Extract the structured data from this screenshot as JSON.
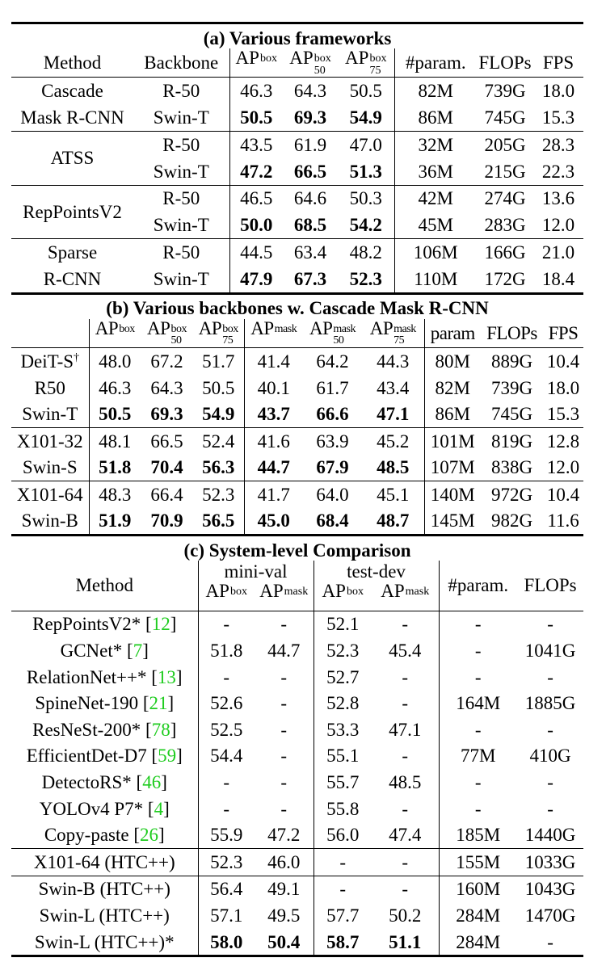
{
  "a": {
    "title": "(a) Various frameworks",
    "headers": [
      "Method",
      "Backbone",
      {
        "base": "AP",
        "sup": "box"
      },
      {
        "base": "AP",
        "sup": "box",
        "sub": "50"
      },
      {
        "base": "AP",
        "sup": "box",
        "sub": "75"
      },
      "#param.",
      "FLOPs",
      "FPS"
    ],
    "groups": [
      {
        "method": [
          "Cascade",
          "Mask R-CNN"
        ],
        "rows": [
          {
            "backbone": "R-50",
            "values": [
              "46.3",
              "64.3",
              "50.5",
              "82M",
              "739G",
              "18.0"
            ],
            "bold": []
          },
          {
            "backbone": "Swin-T",
            "values": [
              "50.5",
              "69.3",
              "54.9",
              "86M",
              "745G",
              "15.3"
            ],
            "bold": [
              0,
              1,
              2
            ]
          }
        ]
      },
      {
        "method": [
          "ATSS"
        ],
        "rows": [
          {
            "backbone": "R-50",
            "values": [
              "43.5",
              "61.9",
              "47.0",
              "32M",
              "205G",
              "28.3"
            ],
            "bold": []
          },
          {
            "backbone": "Swin-T",
            "values": [
              "47.2",
              "66.5",
              "51.3",
              "36M",
              "215G",
              "22.3"
            ],
            "bold": [
              0,
              1,
              2
            ]
          }
        ]
      },
      {
        "method": [
          "RepPointsV2"
        ],
        "rows": [
          {
            "backbone": "R-50",
            "values": [
              "46.5",
              "64.6",
              "50.3",
              "42M",
              "274G",
              "13.6"
            ],
            "bold": []
          },
          {
            "backbone": "Swin-T",
            "values": [
              "50.0",
              "68.5",
              "54.2",
              "45M",
              "283G",
              "12.0"
            ],
            "bold": [
              0,
              1,
              2
            ]
          }
        ]
      },
      {
        "method": [
          "Sparse",
          "R-CNN"
        ],
        "rows": [
          {
            "backbone": "R-50",
            "values": [
              "44.5",
              "63.4",
              "48.2",
              "106M",
              "166G",
              "21.0"
            ],
            "bold": []
          },
          {
            "backbone": "Swin-T",
            "values": [
              "47.9",
              "67.3",
              "52.3",
              "110M",
              "172G",
              "18.4"
            ],
            "bold": [
              0,
              1,
              2
            ]
          }
        ]
      }
    ]
  },
  "b": {
    "title": "(b) Various backbones w. Cascade Mask R-CNN",
    "headers": [
      "",
      {
        "base": "AP",
        "sup": "box"
      },
      {
        "base": "AP",
        "sup": "box",
        "sub": "50"
      },
      {
        "base": "AP",
        "sup": "box",
        "sub": "75"
      },
      {
        "base": "AP",
        "sup": "mask"
      },
      {
        "base": "AP",
        "sup": "mask",
        "sub": "50"
      },
      {
        "base": "AP",
        "sup": "mask",
        "sub": "75"
      },
      "param",
      "FLOPs",
      "FPS"
    ],
    "groups": [
      {
        "rows": [
          {
            "name": "DeiT-S",
            "mark": "†",
            "values": [
              "48.0",
              "67.2",
              "51.7",
              "41.4",
              "64.2",
              "44.3",
              "80M",
              "889G",
              "10.4"
            ],
            "bold": []
          },
          {
            "name": "R50",
            "values": [
              "46.3",
              "64.3",
              "50.5",
              "40.1",
              "61.7",
              "43.4",
              "82M",
              "739G",
              "18.0"
            ],
            "bold": []
          },
          {
            "name": "Swin-T",
            "values": [
              "50.5",
              "69.3",
              "54.9",
              "43.7",
              "66.6",
              "47.1",
              "86M",
              "745G",
              "15.3"
            ],
            "bold": [
              0,
              1,
              2,
              3,
              4,
              5
            ]
          }
        ]
      },
      {
        "rows": [
          {
            "name": "X101-32",
            "values": [
              "48.1",
              "66.5",
              "52.4",
              "41.6",
              "63.9",
              "45.2",
              "101M",
              "819G",
              "12.8"
            ],
            "bold": []
          },
          {
            "name": "Swin-S",
            "values": [
              "51.8",
              "70.4",
              "56.3",
              "44.7",
              "67.9",
              "48.5",
              "107M",
              "838G",
              "12.0"
            ],
            "bold": [
              0,
              1,
              2,
              3,
              4,
              5
            ]
          }
        ]
      },
      {
        "rows": [
          {
            "name": "X101-64",
            "values": [
              "48.3",
              "66.4",
              "52.3",
              "41.7",
              "64.0",
              "45.1",
              "140M",
              "972G",
              "10.4"
            ],
            "bold": []
          },
          {
            "name": "Swin-B",
            "values": [
              "51.9",
              "70.9",
              "56.5",
              "45.0",
              "68.4",
              "48.7",
              "145M",
              "982G",
              "11.6"
            ],
            "bold": [
              0,
              1,
              2,
              3,
              4,
              5
            ]
          }
        ]
      }
    ]
  },
  "c": {
    "title": "(c) System-level Comparison",
    "headers": {
      "method": "Method",
      "minival": "mini-val",
      "testdev": "test-dev",
      "param": "#param.",
      "flops": "FLOPs",
      "sub": [
        {
          "base": "AP",
          "sup": "box"
        },
        {
          "base": "AP",
          "sup": "mask"
        },
        {
          "base": "AP",
          "sup": "box"
        },
        {
          "base": "AP",
          "sup": "mask"
        }
      ]
    },
    "groups": [
      {
        "rows": [
          {
            "method": "RepPointsV2*",
            "ref": "12",
            "values": [
              "-",
              "-",
              "52.1",
              "-",
              "-",
              "-"
            ],
            "bold": []
          },
          {
            "method": "GCNet*",
            "ref": "7",
            "values": [
              "51.8",
              "44.7",
              "52.3",
              "45.4",
              "-",
              "1041G"
            ],
            "bold": []
          },
          {
            "method": "RelationNet++*",
            "ref": "13",
            "values": [
              "-",
              "-",
              "52.7",
              "-",
              "-",
              "-"
            ],
            "bold": []
          },
          {
            "method": "SpineNet-190",
            "ref": "21",
            "values": [
              "52.6",
              "-",
              "52.8",
              "-",
              "164M",
              "1885G"
            ],
            "bold": []
          },
          {
            "method": "ResNeSt-200*",
            "ref": "78",
            "values": [
              "52.5",
              "-",
              "53.3",
              "47.1",
              "-",
              "-"
            ],
            "bold": []
          },
          {
            "method": "EfficientDet-D7",
            "ref": "59",
            "values": [
              "54.4",
              "-",
              "55.1",
              "-",
              "77M",
              "410G"
            ],
            "bold": []
          },
          {
            "method": "DetectoRS*",
            "ref": "46",
            "values": [
              "-",
              "-",
              "55.7",
              "48.5",
              "-",
              "-"
            ],
            "bold": []
          },
          {
            "method": "YOLOv4 P7*",
            "ref": "4",
            "values": [
              "-",
              "-",
              "55.8",
              "-",
              "-",
              "-"
            ],
            "bold": []
          },
          {
            "method": "Copy-paste",
            "ref": "26",
            "values": [
              "55.9",
              "47.2",
              "56.0",
              "47.4",
              "185M",
              "1440G"
            ],
            "bold": []
          }
        ]
      },
      {
        "rows": [
          {
            "method": "X101-64 (HTC++)",
            "values": [
              "52.3",
              "46.0",
              "-",
              "-",
              "155M",
              "1033G"
            ],
            "bold": []
          }
        ]
      },
      {
        "rows": [
          {
            "method": "Swin-B (HTC++)",
            "values": [
              "56.4",
              "49.1",
              "-",
              "-",
              "160M",
              "1043G"
            ],
            "bold": []
          },
          {
            "method": "Swin-L (HTC++)",
            "values": [
              "57.1",
              "49.5",
              "57.7",
              "50.2",
              "284M",
              "1470G"
            ],
            "bold": []
          },
          {
            "method": "Swin-L (HTC++)*",
            "values": [
              "58.0",
              "50.4",
              "58.7",
              "51.1",
              "284M",
              "-"
            ],
            "bold": [
              0,
              1,
              2,
              3
            ]
          }
        ]
      }
    ]
  },
  "colors": {
    "citation": "#1fcc1f"
  }
}
